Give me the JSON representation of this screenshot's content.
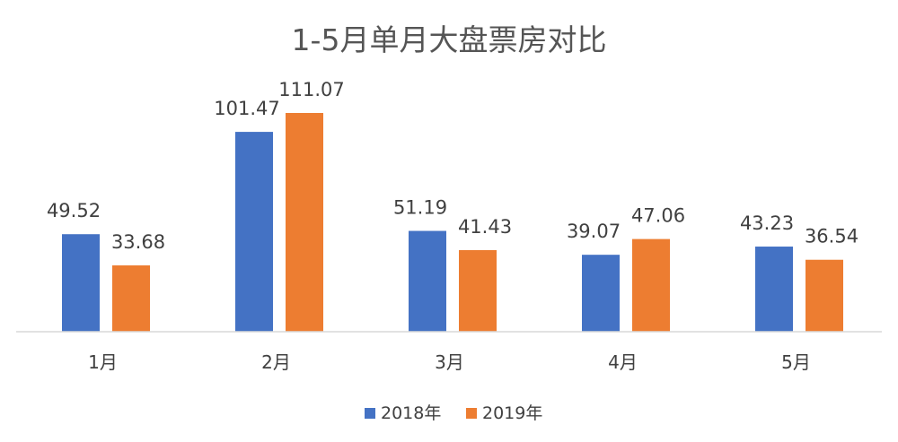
{
  "chart_data": {
    "type": "bar",
    "title": "1-5月单月大盘票房对比",
    "categories": [
      "1月",
      "2月",
      "3月",
      "4月",
      "5月"
    ],
    "series": [
      {
        "name": "2018年",
        "values": [
          49.52,
          101.47,
          51.19,
          39.07,
          43.23
        ],
        "labels": [
          "49.52",
          "101.47",
          "51.19",
          "39.07",
          "43.23"
        ],
        "color": "#4472C4"
      },
      {
        "name": "2019年",
        "values": [
          33.68,
          111.07,
          41.43,
          47.06,
          36.54
        ],
        "labels": [
          "33.68",
          "111.07",
          "41.43",
          "47.06",
          "36.54"
        ],
        "color": "#ED7D31"
      }
    ],
    "xlabel": "",
    "ylabel": "",
    "ylim": [
      0,
      111.07
    ],
    "grid": false,
    "legend": "bottom-center"
  }
}
